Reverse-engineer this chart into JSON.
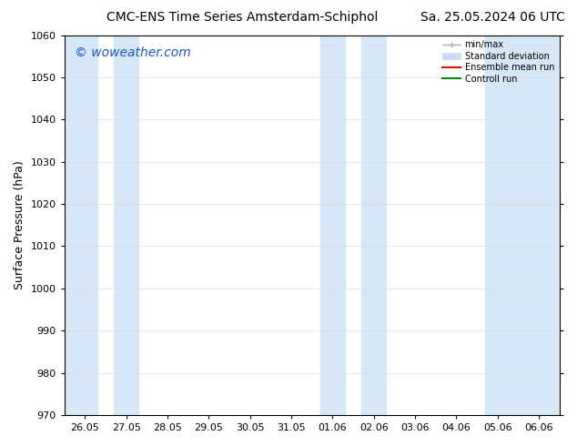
{
  "title_left": "CMC-ENS Time Series Amsterdam-Schiphol",
  "title_right": "Sa. 25.05.2024 06 UTC",
  "ylabel": "Surface Pressure (hPa)",
  "ylim": [
    970,
    1060
  ],
  "yticks": [
    970,
    980,
    990,
    1000,
    1010,
    1020,
    1030,
    1040,
    1050,
    1060
  ],
  "xtick_labels": [
    "26.05",
    "27.05",
    "28.05",
    "29.05",
    "30.05",
    "31.05",
    "01.06",
    "02.06",
    "03.06",
    "04.06",
    "05.06",
    "06.06"
  ],
  "xtick_positions": [
    0,
    1,
    2,
    3,
    4,
    5,
    6,
    7,
    8,
    9,
    10,
    11
  ],
  "xlim": [
    -0.5,
    11.5
  ],
  "shaded_bands": [
    {
      "x_start": -0.5,
      "x_end": 0.3
    },
    {
      "x_start": 0.7,
      "x_end": 1.3
    },
    {
      "x_start": 5.7,
      "x_end": 6.3
    },
    {
      "x_start": 6.7,
      "x_end": 7.3
    },
    {
      "x_start": 9.7,
      "x_end": 11.5
    }
  ],
  "shade_color": "#d6e8f7",
  "watermark_text": "© woweather.com",
  "watermark_color": "#1a56cc",
  "watermark_fontsize": 10,
  "legend_labels": [
    "min/max",
    "Standard deviation",
    "Ensemble mean run",
    "Controll run"
  ],
  "legend_colors": [
    "#aaaaaa",
    "#c8dced",
    "#ff0000",
    "#008800"
  ],
  "title_fontsize": 10,
  "axis_label_fontsize": 9,
  "tick_fontsize": 8,
  "background_color": "#ffffff",
  "grid_color": "#dddddd",
  "spine_color": "#000000"
}
